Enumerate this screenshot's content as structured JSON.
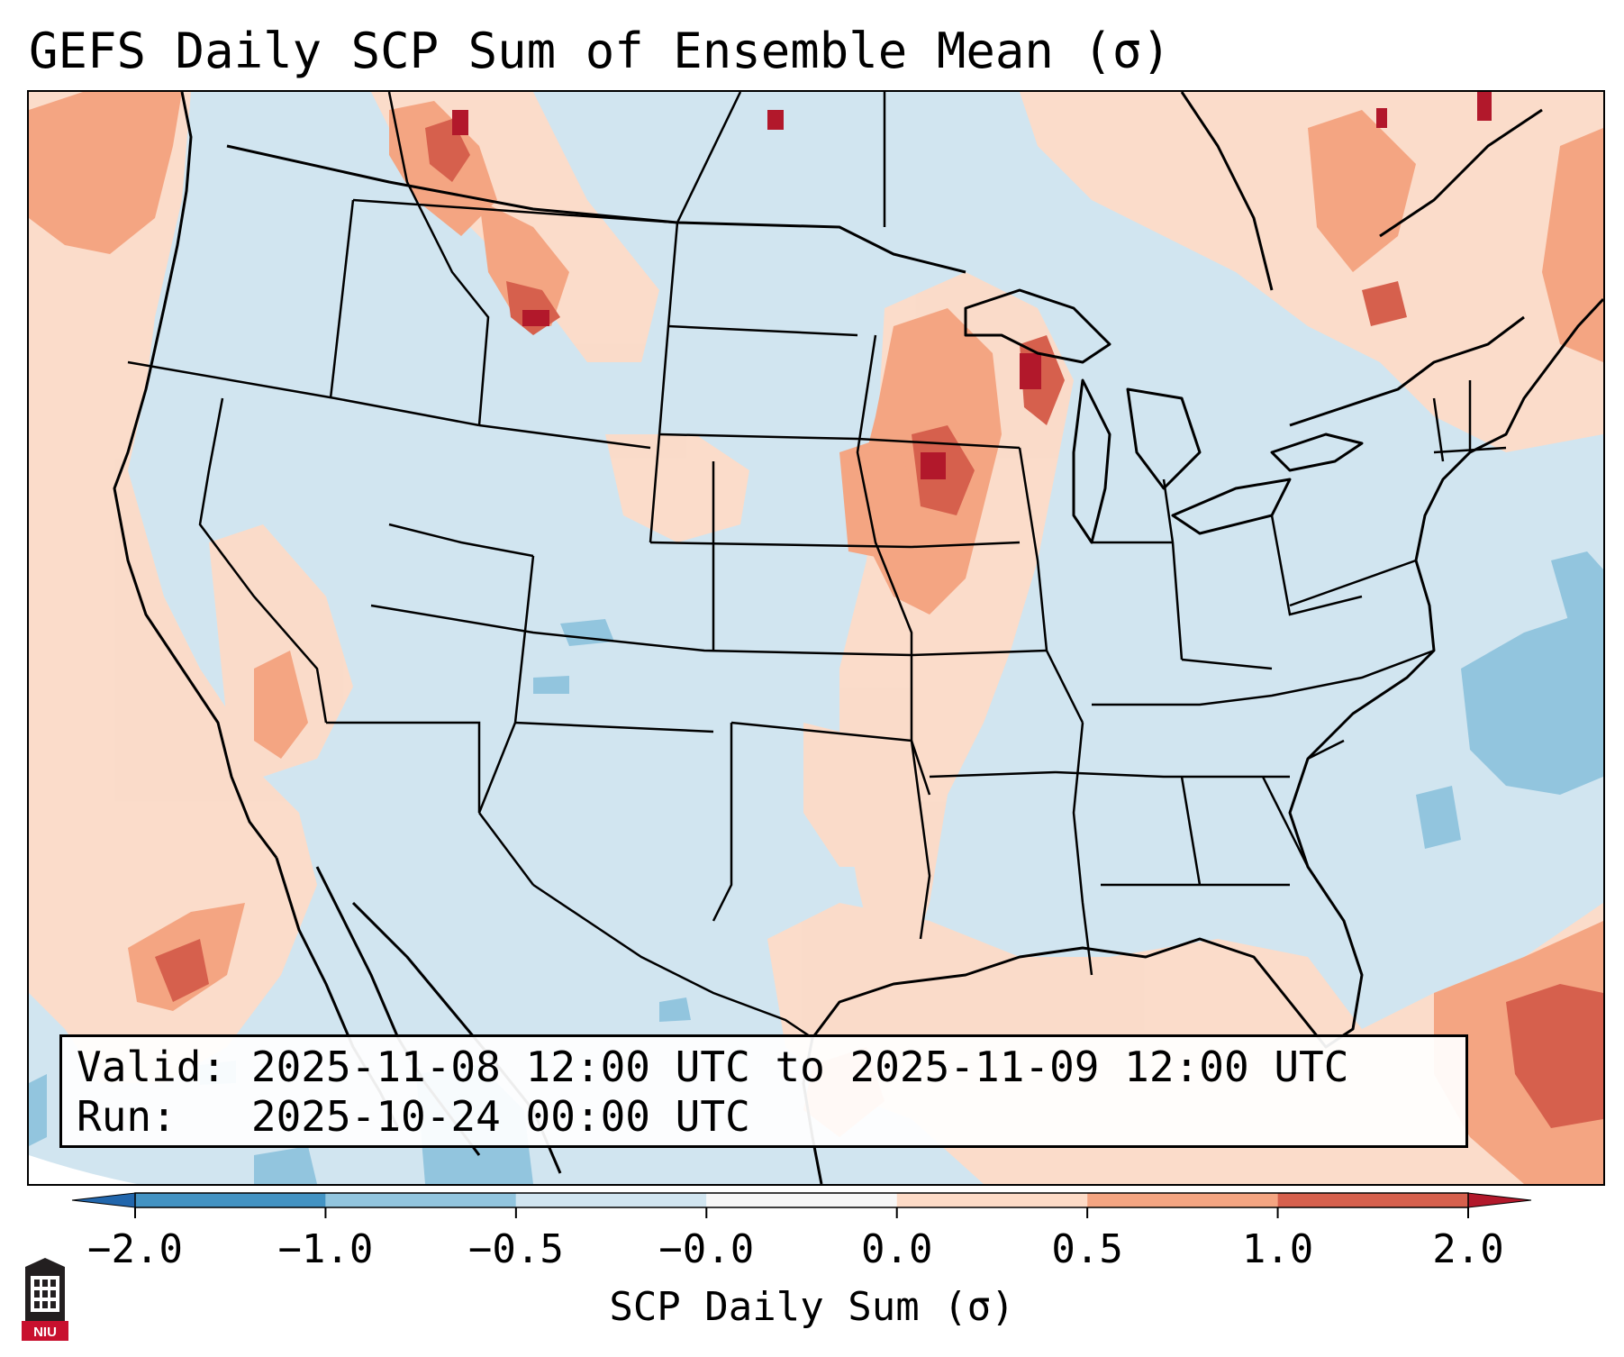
{
  "title": "GEFS Daily SCP Sum of Ensemble Mean (σ)",
  "info": {
    "valid_label": "Valid:",
    "valid_value": "2025-11-08 12:00 UTC to 2025-11-09 12:00 UTC",
    "run_label": "Run:",
    "run_value": "2025-10-24 00:00 UTC"
  },
  "colorbar": {
    "label": "SCP Daily Sum (σ)",
    "ticks": [
      "−2.0",
      "−1.0",
      "−0.5",
      "−0.0",
      "0.0",
      "0.5",
      "1.0",
      "2.0"
    ],
    "colors": [
      "#2166ac",
      "#4393c3",
      "#92c5de",
      "#d1e5f0",
      "#f7f7f7",
      "#fddbc7",
      "#f4a582",
      "#d6604d",
      "#b2182b"
    ]
  },
  "map": {
    "region": "Contiguous United States",
    "ocean_color": "#d0e3f0",
    "boundary_color": "#000000"
  },
  "logo": {
    "text": "NIU",
    "icon": "niu-tower-logo-icon"
  }
}
